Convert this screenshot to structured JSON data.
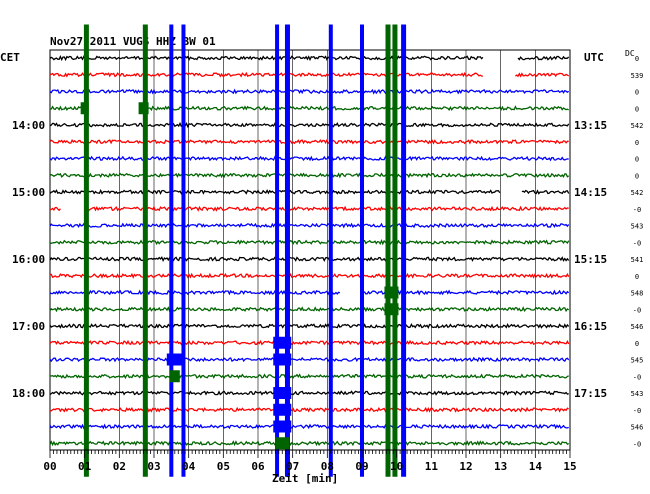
{
  "header": {
    "title": "Nov27 2011   VUGS HHZ BW 01",
    "left_zone": "CET",
    "right_zone": "UTC",
    "dc_label": "DC"
  },
  "chart_data": {
    "type": "line",
    "title": "Nov27 2011   VUGS HHZ BW 01",
    "xlabel": "Zeit [min]",
    "x_ticks": [
      "00",
      "01",
      "02",
      "03",
      "04",
      "05",
      "06",
      "07",
      "08",
      "09",
      "10",
      "11",
      "12",
      "13",
      "14",
      "15"
    ],
    "xlim": [
      0,
      15
    ],
    "traces_per_hour": 4,
    "trace_count": 24,
    "trace_colors": [
      "#000000",
      "#ff0000",
      "#0000ff",
      "#006400"
    ],
    "left_hour_labels": [
      {
        "trace": 4,
        "label": "14:00"
      },
      {
        "trace": 8,
        "label": "15:00"
      },
      {
        "trace": 12,
        "label": "16:00"
      },
      {
        "trace": 16,
        "label": "17:00"
      },
      {
        "trace": 20,
        "label": "18:00"
      }
    ],
    "right_time_labels": [
      {
        "trace": 4,
        "label": "13:15"
      },
      {
        "trace": 8,
        "label": "14:15"
      },
      {
        "trace": 12,
        "label": "15:15"
      },
      {
        "trace": 16,
        "label": "16:15"
      },
      {
        "trace": 20,
        "label": "17:15"
      }
    ],
    "dc_offsets": [
      "0",
      "539",
      "0",
      "0",
      "542",
      "0",
      "0",
      "0",
      "542",
      "-0",
      "543",
      "-0",
      "541",
      "0",
      "548",
      "-0",
      "546",
      "0",
      "545",
      "-0",
      "543",
      "-0",
      "546",
      "-0"
    ],
    "gaps": [
      {
        "trace": 0,
        "from": 12.5,
        "to": 13.5
      },
      {
        "trace": 1,
        "from": 12.5,
        "to": 13.4
      },
      {
        "trace": 3,
        "from": 1.0,
        "to": 2.7
      },
      {
        "trace": 8,
        "from": 13.0,
        "to": 13.6
      },
      {
        "trace": 9,
        "from": 0.3,
        "to": 1.0
      },
      {
        "trace": 14,
        "from": 8.4,
        "to": 9.0
      }
    ],
    "events": [
      {
        "x": 1.05,
        "color": "#006400",
        "from_trace": -2,
        "to_trace": 25,
        "width": 5
      },
      {
        "x": 2.75,
        "color": "#006400",
        "from_trace": -2,
        "to_trace": 25,
        "width": 5
      },
      {
        "x": 3.5,
        "color": "#0000ff",
        "from_trace": -2,
        "to_trace": 25,
        "width": 4
      },
      {
        "x": 3.85,
        "color": "#0000ff",
        "from_trace": -2,
        "to_trace": 25,
        "width": 4
      },
      {
        "x": 6.55,
        "color": "#0000ff",
        "from_trace": -2,
        "to_trace": 25,
        "width": 4
      },
      {
        "x": 6.85,
        "color": "#0000ff",
        "from_trace": -2,
        "to_trace": 25,
        "width": 5
      },
      {
        "x": 8.1,
        "color": "#0000ff",
        "from_trace": -2,
        "to_trace": 25,
        "width": 4
      },
      {
        "x": 9.0,
        "color": "#0000ff",
        "from_trace": -2,
        "to_trace": 25,
        "width": 4
      },
      {
        "x": 9.75,
        "color": "#006400",
        "from_trace": -2,
        "to_trace": 25,
        "width": 5
      },
      {
        "x": 9.95,
        "color": "#006400",
        "from_trace": -2,
        "to_trace": 25,
        "width": 5
      },
      {
        "x": 10.2,
        "color": "#0000ff",
        "from_trace": -2,
        "to_trace": 25,
        "width": 5
      }
    ],
    "bursts": [
      {
        "x": 3.6,
        "trace": 18,
        "color": "#0000ff",
        "width": 16
      },
      {
        "x": 3.6,
        "trace": 19,
        "color": "#006400",
        "width": 10
      },
      {
        "x": 6.7,
        "trace": 17,
        "color": "#0000ff",
        "width": 18
      },
      {
        "x": 6.7,
        "trace": 18,
        "color": "#0000ff",
        "width": 18
      },
      {
        "x": 6.7,
        "trace": 20,
        "color": "#0000ff",
        "width": 18
      },
      {
        "x": 6.7,
        "trace": 21,
        "color": "#0000ff",
        "width": 18
      },
      {
        "x": 6.7,
        "trace": 22,
        "color": "#0000ff",
        "width": 18
      },
      {
        "x": 6.7,
        "trace": 23,
        "color": "#006400",
        "width": 14
      },
      {
        "x": 9.85,
        "trace": 14,
        "color": "#006400",
        "width": 14
      },
      {
        "x": 9.85,
        "trace": 15,
        "color": "#006400",
        "width": 14
      },
      {
        "x": 2.7,
        "trace": 3,
        "color": "#006400",
        "width": 10
      },
      {
        "x": 1.0,
        "trace": 3,
        "color": "#006400",
        "width": 8
      }
    ],
    "grid": true
  }
}
